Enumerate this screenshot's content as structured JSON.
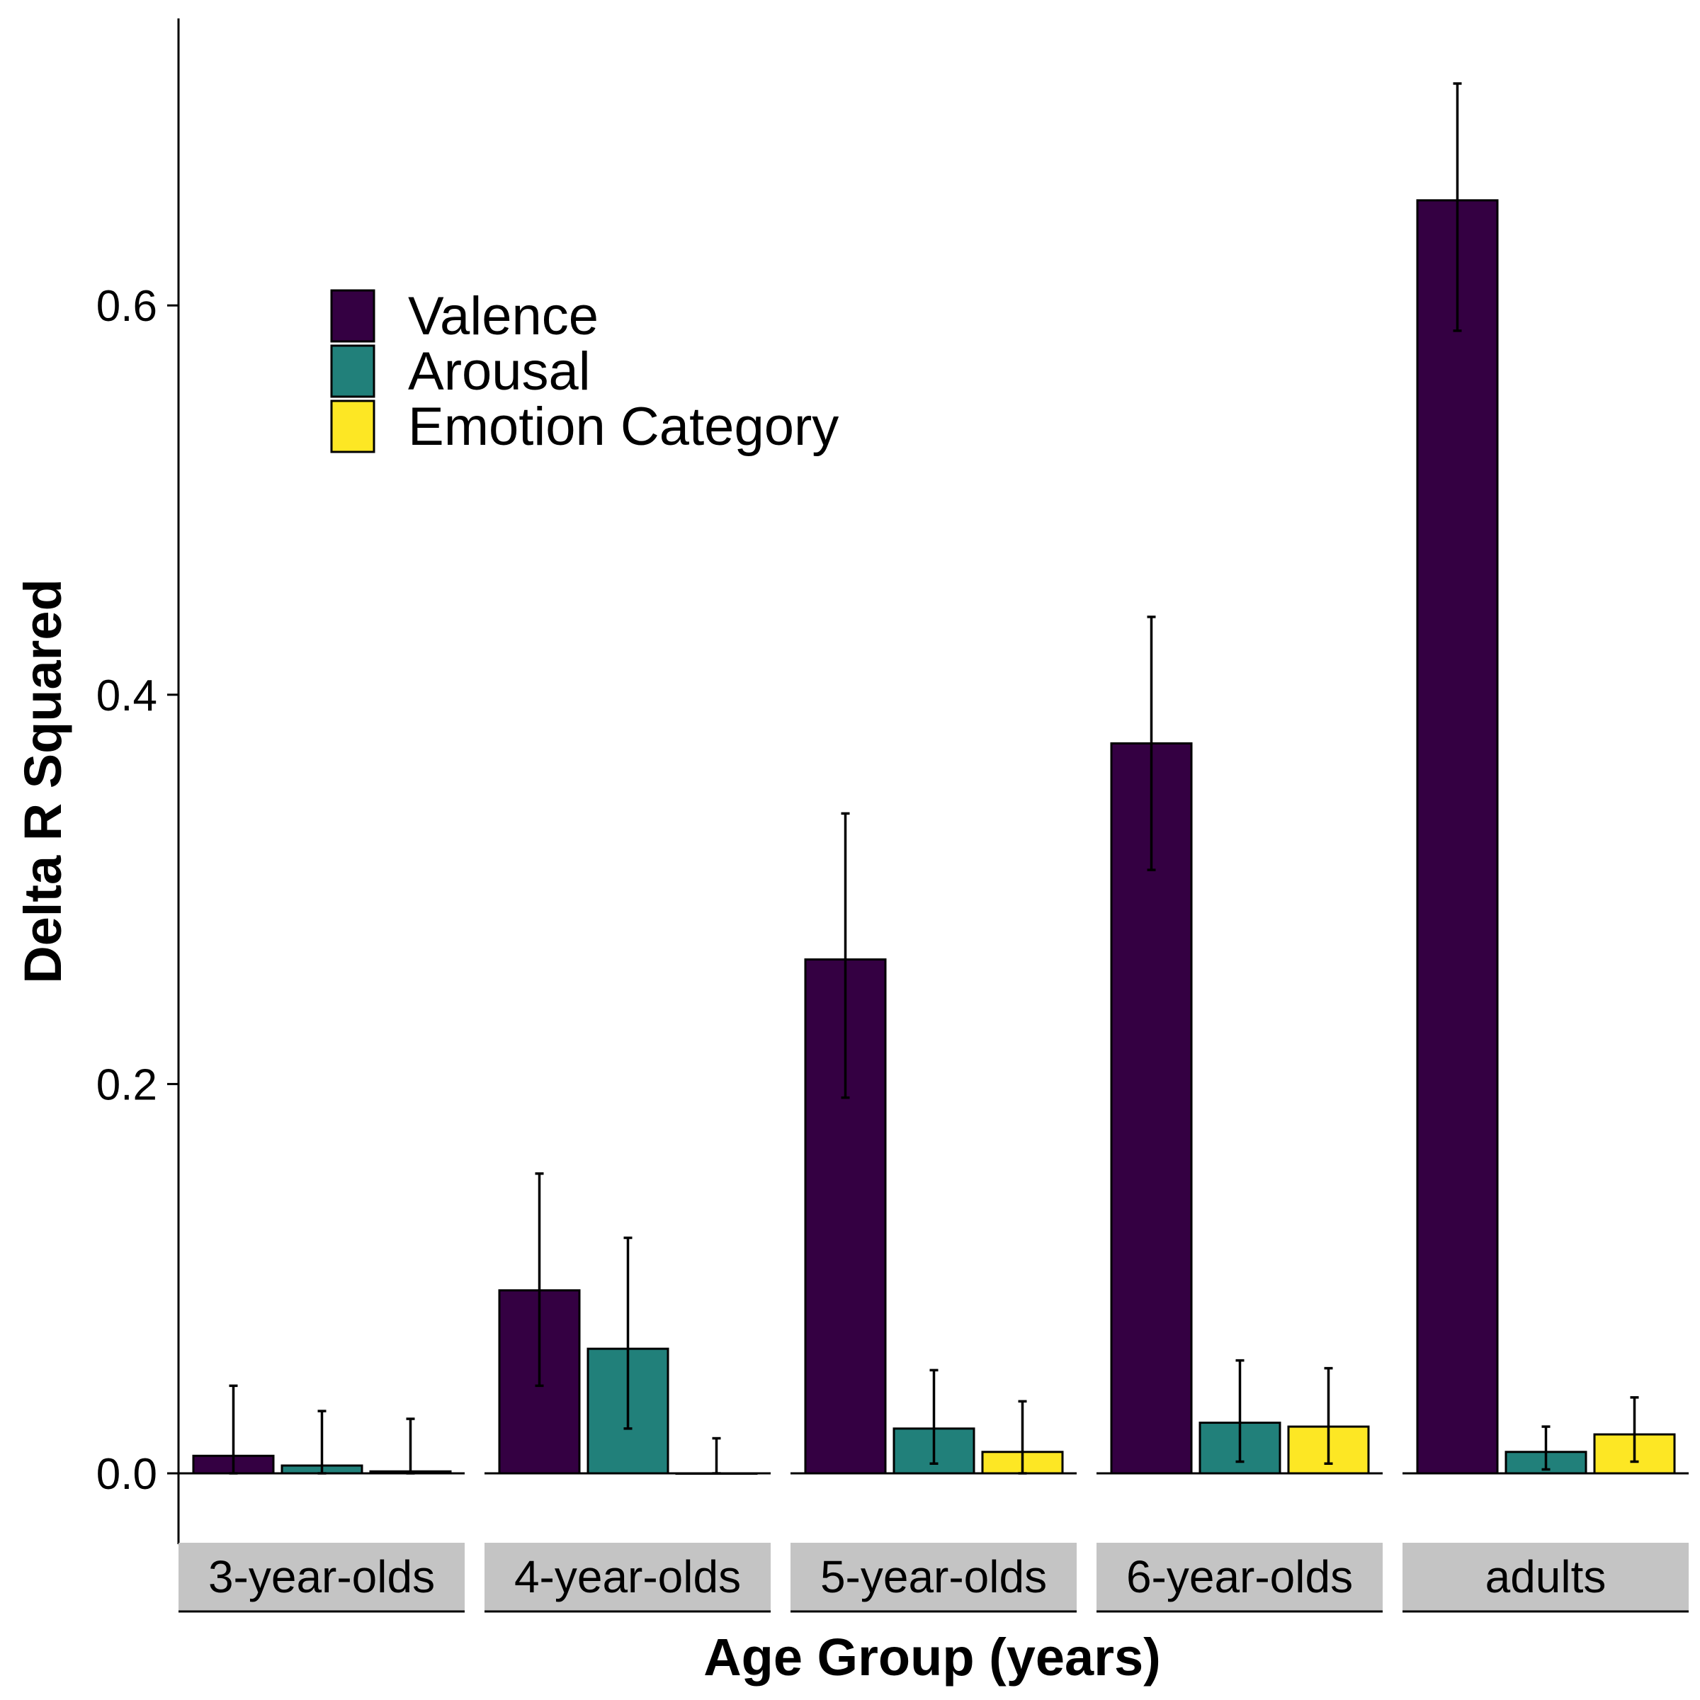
{
  "chart_data": {
    "type": "bar",
    "title": "",
    "xlabel": "Age Group (years)",
    "ylabel": "Delta R Squared",
    "ylim": [
      -0.036,
      0.75
    ],
    "yticks": [
      0.0,
      0.2,
      0.4,
      0.6
    ],
    "ytick_labels": [
      "0.0",
      "0.2",
      "0.4",
      "0.6"
    ],
    "facets": [
      "3-year-olds",
      "4-year-olds",
      "5-year-olds",
      "6-year-olds",
      "adults"
    ],
    "legend_placement": "top-left",
    "grid": false,
    "series": [
      {
        "name": "Valence",
        "color": "#340042",
        "values": [
          0.009,
          0.094,
          0.264,
          0.375,
          0.654
        ],
        "error_low": [
          0.0,
          0.045,
          0.193,
          0.31,
          0.587
        ],
        "error_high": [
          0.045,
          0.154,
          0.339,
          0.44,
          0.714
        ]
      },
      {
        "name": "Arousal",
        "color": "#21807a",
        "values": [
          0.004,
          0.064,
          0.023,
          0.026,
          0.011
        ],
        "error_low": [
          0.0,
          0.023,
          0.005,
          0.006,
          0.002
        ],
        "error_high": [
          0.032,
          0.121,
          0.053,
          0.058,
          0.024
        ]
      },
      {
        "name": "Emotion Category",
        "color": "#fde724",
        "values": [
          0.001,
          0.0,
          0.011,
          0.024,
          0.02
        ],
        "error_low": [
          0.0,
          0.0,
          0.0,
          0.005,
          0.006
        ],
        "error_high": [
          0.028,
          0.018,
          0.037,
          0.054,
          0.039
        ]
      }
    ]
  }
}
